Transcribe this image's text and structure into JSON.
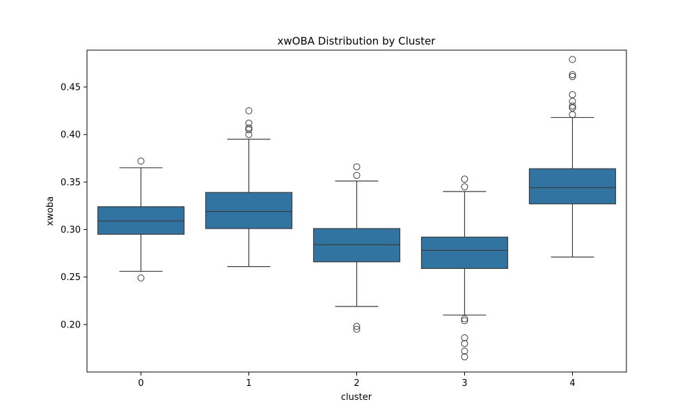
{
  "chart_data": {
    "type": "box",
    "title": "xwOBA Distribution by Cluster",
    "xlabel": "cluster",
    "ylabel": "xwoba",
    "ylim": [
      0.15,
      0.4888
    ],
    "yticks": [
      0.2,
      0.25,
      0.3,
      0.35,
      0.4,
      0.45
    ],
    "ytick_labels": [
      "0.20",
      "0.25",
      "0.30",
      "0.35",
      "0.40",
      "0.45"
    ],
    "box_color": "#3274a1",
    "line_color": "#3b3b3b",
    "grid": false,
    "categories": [
      "0",
      "1",
      "2",
      "3",
      "4"
    ],
    "boxes": [
      {
        "category": "0",
        "whisker_low": 0.256,
        "q1": 0.295,
        "median": 0.309,
        "q3": 0.324,
        "whisker_high": 0.365,
        "outliers": [
          0.372,
          0.249
        ]
      },
      {
        "category": "1",
        "whisker_low": 0.261,
        "q1": 0.301,
        "median": 0.319,
        "q3": 0.339,
        "whisker_high": 0.395,
        "outliers": [
          0.425,
          0.412,
          0.407,
          0.405,
          0.4
        ]
      },
      {
        "category": "2",
        "whisker_low": 0.219,
        "q1": 0.266,
        "median": 0.284,
        "q3": 0.301,
        "whisker_high": 0.351,
        "outliers": [
          0.366,
          0.357,
          0.198,
          0.195
        ]
      },
      {
        "category": "3",
        "whisker_low": 0.21,
        "q1": 0.259,
        "median": 0.278,
        "q3": 0.292,
        "whisker_high": 0.34,
        "outliers": [
          0.353,
          0.345,
          0.206,
          0.204,
          0.186,
          0.18,
          0.172,
          0.166
        ]
      },
      {
        "category": "4",
        "whisker_low": 0.271,
        "q1": 0.327,
        "median": 0.344,
        "q3": 0.364,
        "whisker_high": 0.418,
        "outliers": [
          0.479,
          0.463,
          0.461,
          0.442,
          0.435,
          0.43,
          0.428,
          0.421
        ]
      }
    ]
  }
}
